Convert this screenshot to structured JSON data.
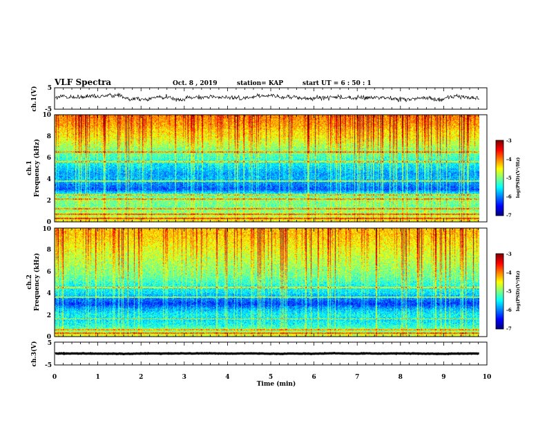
{
  "header": {
    "title": "VLF Spectra",
    "date": "Oct. 8  , 2019",
    "station": "station= KAP",
    "start": "start  UT  =   6  : 50 : 1"
  },
  "chart_data": {
    "type": "heatmap",
    "x_axis": {
      "label": "Time  (min)",
      "range": [
        0,
        10
      ],
      "ticks": [
        "0",
        "1",
        "2",
        "3",
        "4",
        "5",
        "6",
        "7",
        "8",
        "9",
        "10"
      ],
      "data_end": 9.83
    },
    "panels": [
      {
        "id": "ch1-waveform",
        "type": "line",
        "ylabel": "ch.1(V)",
        "ylim": [
          -5,
          5
        ],
        "yticks": [
          "5",
          "-5"
        ],
        "mean": 0.4,
        "noise_amplitude": 1.6,
        "color": "#000000"
      },
      {
        "id": "ch1-spectrogram",
        "type": "heatmap",
        "ylabel_top": "ch.1",
        "ylabel": "Frequency  (kHz)",
        "ylim": [
          0,
          10
        ],
        "yticks": [
          "0",
          "2",
          "4",
          "6",
          "8",
          "10"
        ],
        "colorbar": {
          "label": "log(PSD)(V²/Hz)",
          "range": [
            -7,
            -3
          ],
          "ticks": [
            "-3",
            "-4",
            "-5",
            "-6",
            "-7"
          ]
        },
        "profile_khz": [
          0,
          0.5,
          1,
          1.5,
          2,
          2.5,
          3,
          3.5,
          4,
          4.5,
          5,
          5.5,
          6,
          6.5,
          7,
          7.5,
          8,
          8.5,
          9,
          9.5,
          10
        ],
        "profile_log_psd": [
          -4.5,
          -4.8,
          -5.0,
          -5.1,
          -5.0,
          -5.3,
          -6.2,
          -6.0,
          -5.8,
          -5.9,
          -5.7,
          -5.5,
          -5.3,
          -5.1,
          -4.9,
          -4.7,
          -4.5,
          -4.4,
          -4.2,
          -4.1,
          -4.0
        ],
        "tones_khz": [
          0.3,
          0.7,
          1.2,
          2.1,
          2.5,
          3.8,
          5.6,
          6.5
        ]
      },
      {
        "id": "ch2-spectrogram",
        "type": "heatmap",
        "ylabel_top": "ch.2",
        "ylabel": "Frequency  (kHz)",
        "ylim": [
          0,
          10
        ],
        "yticks": [
          "0",
          "2",
          "4",
          "6",
          "8",
          "10"
        ],
        "colorbar": {
          "label": "log(PSD)(V²/Hz)",
          "range": [
            -7,
            -3
          ],
          "ticks": [
            "-3",
            "-4",
            "-5",
            "-6",
            "-7"
          ]
        },
        "profile_khz": [
          0,
          0.5,
          1,
          1.5,
          2,
          2.5,
          3,
          3.5,
          4,
          4.5,
          5,
          5.5,
          6,
          6.5,
          7,
          7.5,
          8,
          8.5,
          9,
          9.5,
          10
        ],
        "profile_log_psd": [
          -4.6,
          -5.0,
          -5.4,
          -5.6,
          -5.5,
          -5.8,
          -6.3,
          -6.0,
          -5.6,
          -5.5,
          -5.3,
          -5.1,
          -5.0,
          -4.9,
          -4.8,
          -4.7,
          -4.6,
          -4.5,
          -4.4,
          -4.3,
          -4.3
        ],
        "tones_khz": [
          0.3,
          0.6,
          1.6,
          3.6,
          4.5
        ]
      },
      {
        "id": "ch3-waveform",
        "type": "line",
        "ylabel": "ch.3(V)",
        "ylim": [
          -5,
          5
        ],
        "yticks": [
          "5",
          "-5"
        ],
        "mean": 0.0,
        "noise_amplitude": 0.15,
        "color": "#000000"
      }
    ]
  }
}
